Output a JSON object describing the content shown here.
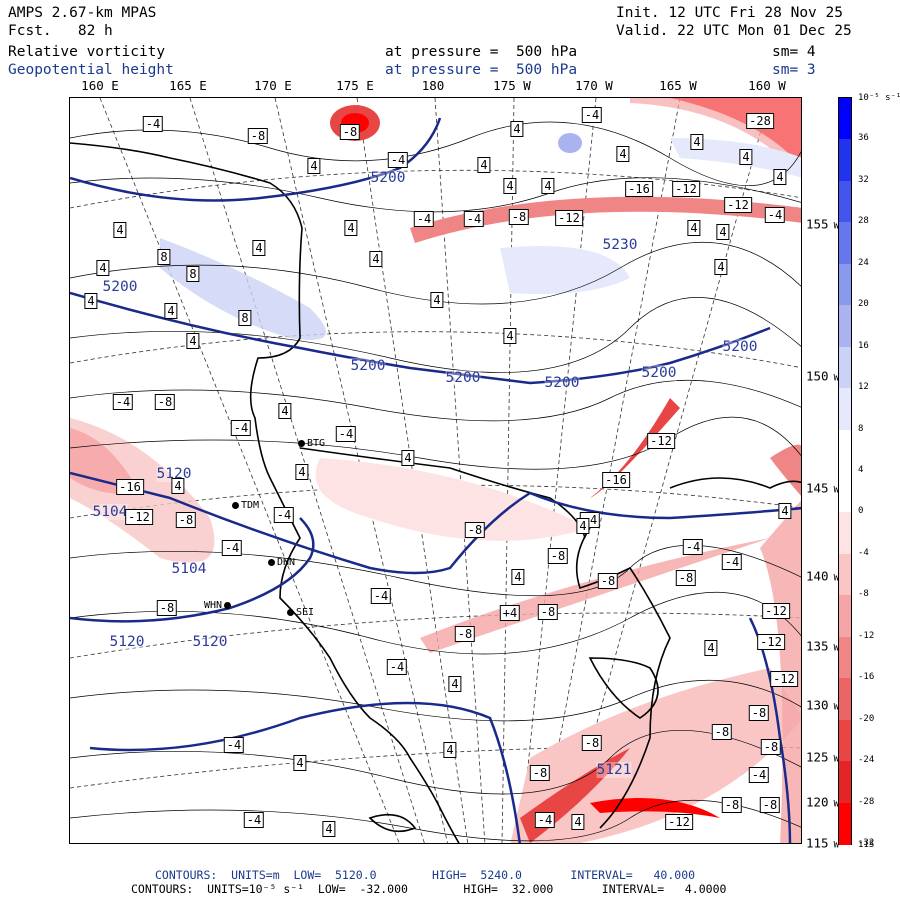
{
  "header": {
    "model": "AMPS 2.67-km MPAS",
    "fcst": "Fcst.   82 h",
    "init": "Init. 12 UTC Fri 28 Nov 25",
    "valid": "Valid. 22 UTC Mon 01 Dec 25",
    "field1_name": "Relative vorticity",
    "field1_level": "at pressure =  500 hPa",
    "field1_sm": "sm= 4",
    "field2_name": "Geopotential height",
    "field2_level": "at pressure =  500 hPa",
    "field2_sm": "sm= 3"
  },
  "longitude_labels": [
    "160 E",
    "165 E",
    "170 E",
    "175 E",
    "180",
    "175 W",
    "170 W",
    "165 W",
    "160 W"
  ],
  "latitude_labels": [
    "155",
    "150",
    "145",
    "140",
    "135",
    "130",
    "125",
    "120",
    "115"
  ],
  "latitude_suffix": "W",
  "colorbar": {
    "units": "10⁻⁵ s⁻¹",
    "ticks": [
      "36",
      "32",
      "28",
      "24",
      "20",
      "16",
      "12",
      "8",
      "4",
      "0",
      "-4",
      "-8",
      "-12",
      "-16",
      "-20",
      "-24",
      "-28",
      "-32"
    ],
    "bottom_label": "115",
    "colors": [
      "#0000ff",
      "#2233ee",
      "#4455ee",
      "#6677ee",
      "#8899ee",
      "#aab3f0",
      "#ccd2f5",
      "#e6e9fb",
      "#ffffff",
      "#ffffff",
      "#fde3e3",
      "#f9c5c5",
      "#f5a5a5",
      "#f08585",
      "#ec6565",
      "#e84545",
      "#e42525",
      "#ff0000"
    ]
  },
  "stations": [
    {
      "id": "BTG"
    },
    {
      "id": "TDM"
    },
    {
      "id": "DHN"
    },
    {
      "id": "SEI"
    },
    {
      "id": "WHN"
    }
  ],
  "height_labels": [
    "5200",
    "5200",
    "5200",
    "5200",
    "5200",
    "5200",
    "5230",
    "5120",
    "5104",
    "5104",
    "5120",
    "5120",
    "5121",
    "5200"
  ],
  "vorticity_labels": [
    "-4",
    "-8",
    "4",
    "-4",
    "-8",
    "4",
    "-4",
    "4",
    "4",
    "-8",
    "-12",
    "4",
    "-4",
    "4",
    "-16",
    "-12",
    "-12",
    "-4",
    "4",
    "4",
    "-28",
    "4",
    "4",
    "-4",
    "-4",
    "4",
    "-4",
    "4",
    "8",
    "8",
    "4",
    "4",
    "4",
    "4",
    "4",
    "8",
    "4",
    "4",
    "4",
    "4",
    "4",
    "-4",
    "4",
    "-4",
    "4",
    "4",
    "-12",
    "-16",
    "-16",
    "-12",
    "-8",
    "-4",
    "4",
    "-8",
    "-8",
    "-4",
    "-8",
    "-4",
    "-4",
    "-8",
    "-8",
    "+4",
    "-8",
    "-12",
    "-12",
    "4",
    "-4",
    "4",
    "-8",
    "-12",
    "-8",
    "-8",
    "-8",
    "-8",
    "-8",
    "-4",
    "-4",
    "4",
    "-8",
    "-8",
    "-4",
    "4",
    "-4",
    "4",
    "-12",
    "4",
    "-8",
    "-4",
    "4",
    "4",
    "4"
  ],
  "footer": {
    "line1": "CONTOURS:  UNITS=m  LOW=  5120.0        HIGH=  5240.0       INTERVAL=   40.000",
    "line2": "CONTOURS:  UNITS=10⁻⁵ s⁻¹  LOW=  -32.000        HIGH=  32.000       INTERVAL=   4.0000"
  }
}
